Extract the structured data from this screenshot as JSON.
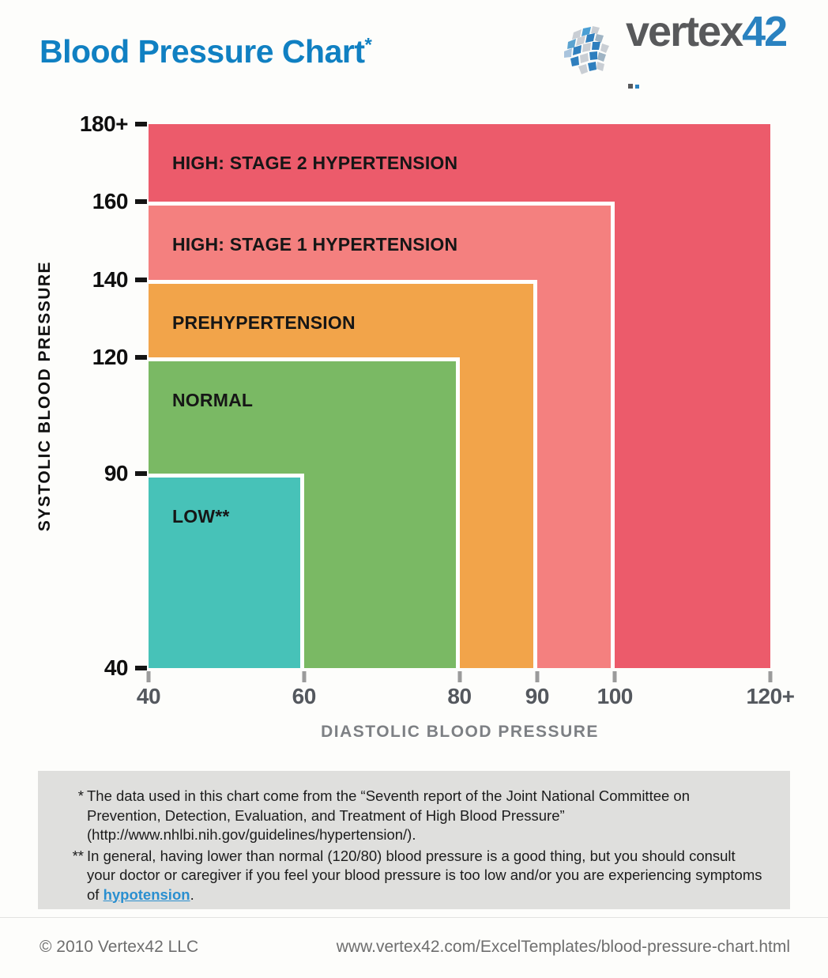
{
  "theme": {
    "title_blue": "#1080c2",
    "logo_gray": "#58595b",
    "logo_blue": "#2a82c0",
    "link_blue": "#2a8fd0",
    "note_bg": "#dfdfdd",
    "axis_gray": "#7d8084"
  },
  "header": {
    "title": "Blood Pressure Chart",
    "title_note_marker": "*"
  },
  "logo": {
    "word": "vertex",
    "number": "42"
  },
  "chart_data": {
    "type": "area",
    "title": "Blood pressure category zones",
    "xlabel": "DIASTOLIC BLOOD PRESSURE",
    "ylabel": "SYSTOLIC BLOOD PRESSURE",
    "xlim": [
      40,
      120
    ],
    "ylim": [
      40,
      180
    ],
    "x_ticks": [
      {
        "label": "40",
        "value": 40
      },
      {
        "label": "60",
        "value": 60
      },
      {
        "label": "80",
        "value": 80
      },
      {
        "label": "90",
        "value": 90
      },
      {
        "label": "100",
        "value": 100
      },
      {
        "label": "120+",
        "value": 120
      }
    ],
    "y_ticks": [
      {
        "label": "180+",
        "value": 180
      },
      {
        "label": "160",
        "value": 160
      },
      {
        "label": "140",
        "value": 140
      },
      {
        "label": "120",
        "value": 120
      },
      {
        "label": "90",
        "value": 90
      },
      {
        "label": "40",
        "value": 40
      }
    ],
    "origin": {
      "diastolic_min": 40,
      "systolic_min": 40
    },
    "zones": [
      {
        "label": "HIGH: STAGE 2 HYPERTENSION",
        "diastolic_max": 120,
        "systolic_max": 180,
        "open_ended": true,
        "color": "#ec5b6b",
        "textured": false
      },
      {
        "label": "HIGH: STAGE 1 HYPERTENSION",
        "diastolic_max": 100,
        "systolic_max": 160,
        "open_ended": false,
        "color": "#f4807f",
        "textured": false
      },
      {
        "label": "PREHYPERTENSION",
        "diastolic_max": 90,
        "systolic_max": 140,
        "open_ended": false,
        "color": "#f2a44a",
        "textured": false
      },
      {
        "label": "NORMAL",
        "diastolic_max": 80,
        "systolic_max": 120,
        "open_ended": false,
        "color": "#7ab964",
        "textured": false
      },
      {
        "label": "LOW**",
        "diastolic_max": 60,
        "systolic_max": 90,
        "open_ended": false,
        "color": "#47c2b8",
        "textured": true
      }
    ]
  },
  "footnotes": {
    "note1_marker": "*",
    "note1_text": "The data used in this chart come from the “Seventh report of the Joint National Committee on Prevention, Detection, Evaluation, and Treatment of High Blood Pressure” (http://www.nhlbi.nih.gov/guidelines/hypertension/).",
    "note2_marker": "**",
    "note2_before": "In general, having lower than normal (120/80) blood pressure is a good thing, but you should consult your doctor or caregiver if you feel your blood pressure is too low and/or you are experiencing symptoms of ",
    "note2_link": "hypotension",
    "note2_after": "."
  },
  "footer": {
    "copyright": "© 2010 Vertex42 LLC",
    "url": "www.vertex42.com/ExcelTemplates/blood-pressure-chart.html"
  }
}
